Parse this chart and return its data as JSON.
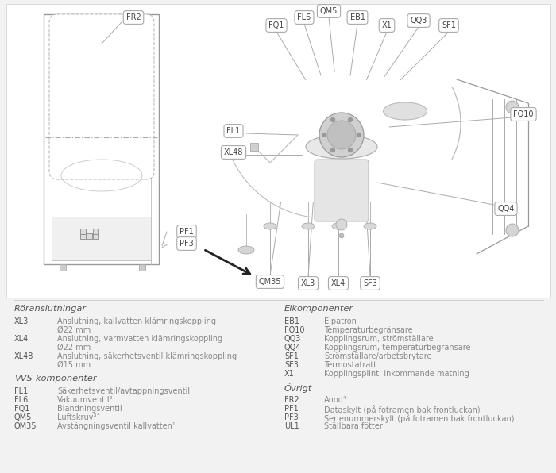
{
  "bg_color": "#f2f2f2",
  "diagram_bg": "#ffffff",
  "text_color": "#888888",
  "dark_text": "#555555",
  "label_ec": "#999999",
  "line_color": "#aaaaaa",
  "legend_left_title": "Röranslutningar",
  "legend_left_entries": [
    [
      "XL3",
      "Anslutning, kallvatten klämringskoppling",
      "Ø22 mm"
    ],
    [
      "XL4",
      "Anslutning, varmvatten klämringskoppling",
      "Ø22 mm"
    ],
    [
      "XL48",
      "Anslutning, säkerhetsventil klämringskoppling",
      "Ø15 mm"
    ]
  ],
  "legend_left_title2": "VVS-komponenter",
  "legend_left_entries2": [
    [
      "FL1",
      "Säkerhetsventil/avtappningsventil",
      ""
    ],
    [
      "FL6",
      "Vakuumventil²",
      ""
    ],
    [
      "FQ1",
      "Blandningsventil",
      ""
    ],
    [
      "QM5",
      "Luftskruv³˄",
      ""
    ],
    [
      "QM35",
      "Avstängningsventil kallvatten¹",
      ""
    ]
  ],
  "legend_right_title": "Elkomponenter",
  "legend_right_entries": [
    [
      "EB1",
      "Elpatron",
      ""
    ],
    [
      "FQ10",
      "Temperaturbegränsare",
      ""
    ],
    [
      "QQ3",
      "Kopplingsrum, strömställare",
      ""
    ],
    [
      "QQ4",
      "Kopplingsrum, temperaturbegränsare",
      ""
    ],
    [
      "SF1",
      "Strömställare/arbetsbrytare",
      ""
    ],
    [
      "SF3",
      "Termostatratt",
      ""
    ],
    [
      "X1",
      "Kopplingsplint, inkommande matning",
      ""
    ]
  ],
  "legend_right_title2": "Övrigt",
  "legend_right_entries2": [
    [
      "FR2",
      "Anod⁴",
      ""
    ],
    [
      "PF1",
      "Dataskylt (på fotramen bak frontluckan)",
      ""
    ],
    [
      "PF3",
      "Serienummerskylt (på fotramen bak frontluckan)",
      ""
    ],
    [
      "UL1",
      "Ställbara fötter",
      ""
    ]
  ]
}
